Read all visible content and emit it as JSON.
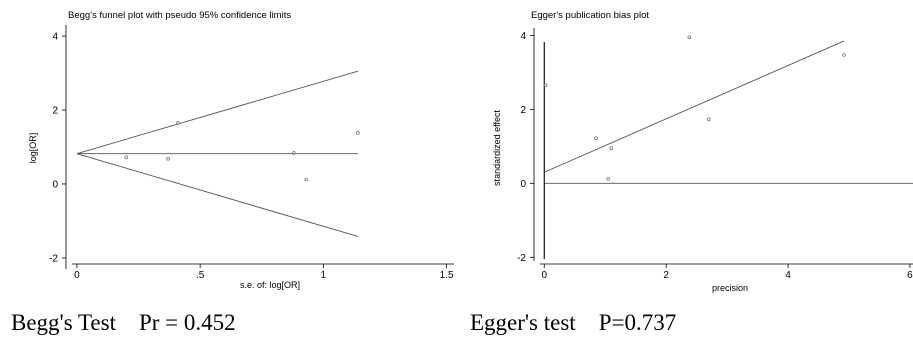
{
  "chart_data": [
    {
      "type": "scatter",
      "title": "Begg's funnel plot with pseudo 95% confidence limits",
      "xlabel": "s.e. of: log[OR]",
      "ylabel": "log[OR]",
      "xlim": [
        -0.02,
        1.53
      ],
      "ylim": [
        -2.3,
        4.3
      ],
      "xticks": [
        0,
        0.5,
        1,
        1.5
      ],
      "xtick_labels": [
        "0",
        ".5",
        "1",
        "1.5"
      ],
      "yticks": [
        -2,
        0,
        2,
        4
      ],
      "ytick_labels": [
        "-2",
        "0",
        "2",
        "4"
      ],
      "grid": false,
      "points": [
        {
          "x": 0.2,
          "y": 0.72
        },
        {
          "x": 0.37,
          "y": 0.68
        },
        {
          "x": 0.41,
          "y": 1.65
        },
        {
          "x": 0.88,
          "y": 0.84
        },
        {
          "x": 0.93,
          "y": 0.12
        },
        {
          "x": 1.14,
          "y": 1.38
        }
      ],
      "pooled_estimate": 0.82,
      "pseudo_ci_upper": [
        {
          "x": 0,
          "y": 0.82
        },
        {
          "x": 1.14,
          "y": 3.05
        }
      ],
      "pseudo_ci_lower": [
        {
          "x": 0,
          "y": 0.82
        },
        {
          "x": 1.14,
          "y": -1.42
        }
      ]
    },
    {
      "type": "scatter",
      "title": "Egger's publication bias plot",
      "xlabel": "precision",
      "ylabel": "standardized effect",
      "xlim": [
        -0.07,
        6.05
      ],
      "ylim": [
        -2.1,
        4.2
      ],
      "xticks": [
        0,
        2,
        4,
        6
      ],
      "xtick_labels": [
        "0",
        "2",
        "4",
        "6"
      ],
      "yticks": [
        -2,
        0,
        2,
        4
      ],
      "ytick_labels": [
        "-2",
        "0",
        "2",
        "4"
      ],
      "grid": false,
      "points": [
        {
          "x": 0.02,
          "y": 2.65
        },
        {
          "x": 0.85,
          "y": 1.22
        },
        {
          "x": 1.05,
          "y": 0.12
        },
        {
          "x": 1.1,
          "y": 0.95
        },
        {
          "x": 2.38,
          "y": 3.95
        },
        {
          "x": 2.7,
          "y": 1.73
        },
        {
          "x": 4.92,
          "y": 3.47
        }
      ],
      "regression_line": [
        {
          "x": 0,
          "y": 0.3
        },
        {
          "x": 4.92,
          "y": 3.85
        }
      ],
      "intercept_ci": [
        -2.05,
        3.82
      ]
    }
  ],
  "captions": {
    "begg": "Begg's Test    Pr = 0.452",
    "egger": "Egger's test    P=0.737"
  },
  "colors": {
    "axis": "#000000",
    "line": "#555555",
    "point": "#777777"
  }
}
